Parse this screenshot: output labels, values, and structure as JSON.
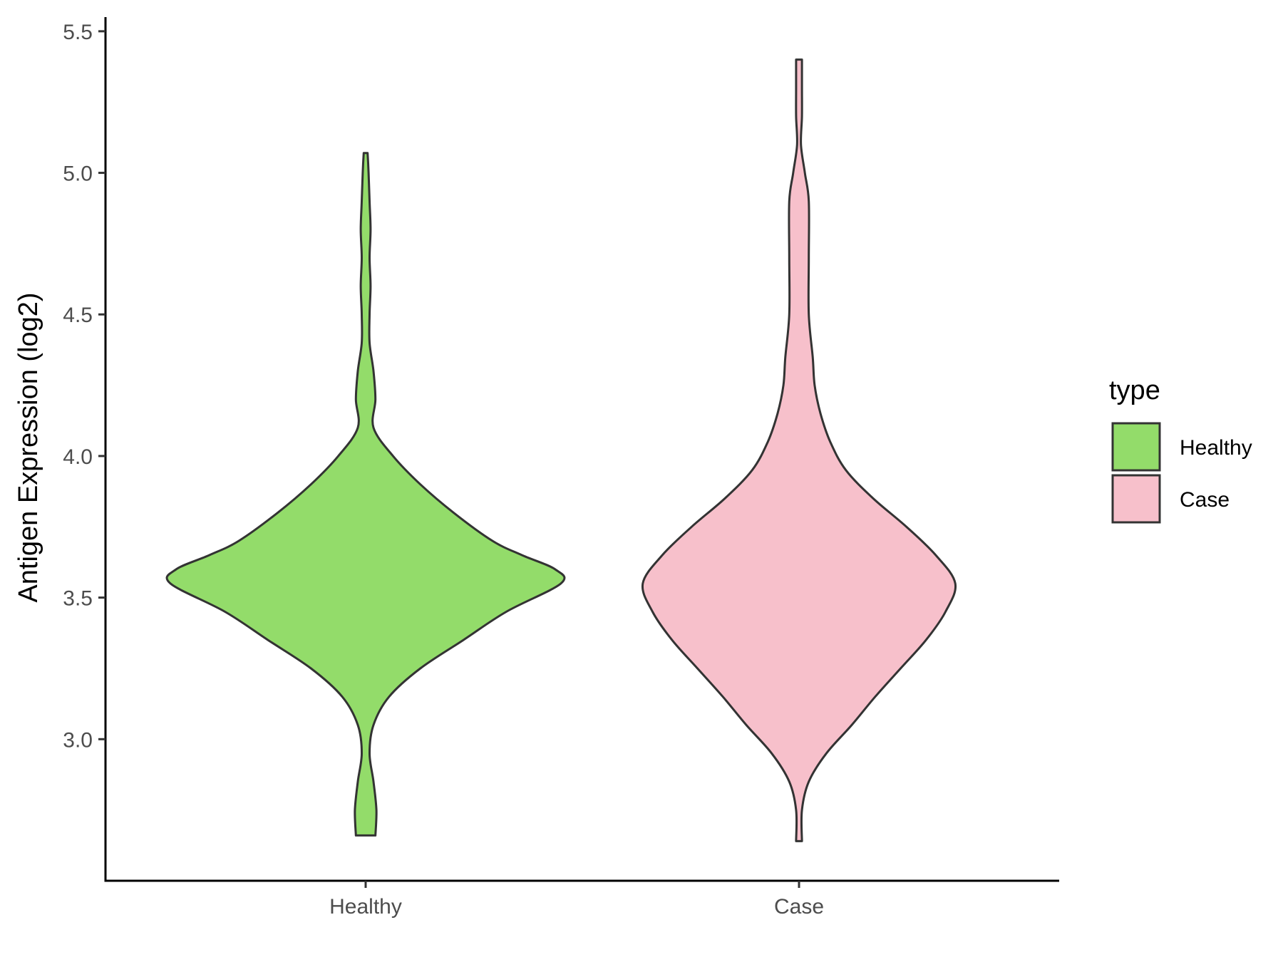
{
  "chart_data": {
    "type": "violin",
    "title": "",
    "xlabel": "",
    "ylabel": "Antigen Expression (log2)",
    "ylim": [
      2.5,
      5.55
    ],
    "yticks": [
      "3.0",
      "3.5",
      "4.0",
      "4.5",
      "5.0",
      "5.5"
    ],
    "categories": [
      "Healthy",
      "Case"
    ],
    "grid": false,
    "legend": {
      "title": "type",
      "position": "right",
      "items": [
        {
          "label": "Healthy",
          "color": "#93dc6a"
        },
        {
          "label": "Case",
          "color": "#f7c0cb"
        }
      ]
    },
    "series": [
      {
        "category": "Healthy",
        "color": "#93dc6a",
        "min": 2.66,
        "max": 5.07,
        "density": [
          [
            2.66,
            0.05
          ],
          [
            2.75,
            0.055
          ],
          [
            2.85,
            0.04
          ],
          [
            2.95,
            0.02
          ],
          [
            3.05,
            0.04
          ],
          [
            3.15,
            0.12
          ],
          [
            3.25,
            0.28
          ],
          [
            3.35,
            0.5
          ],
          [
            3.45,
            0.72
          ],
          [
            3.55,
            1.0
          ],
          [
            3.6,
            0.97
          ],
          [
            3.65,
            0.8
          ],
          [
            3.7,
            0.65
          ],
          [
            3.8,
            0.45
          ],
          [
            3.9,
            0.28
          ],
          [
            4.0,
            0.14
          ],
          [
            4.1,
            0.04
          ],
          [
            4.2,
            0.05
          ],
          [
            4.3,
            0.04
          ],
          [
            4.4,
            0.02
          ],
          [
            4.5,
            0.02
          ],
          [
            4.6,
            0.025
          ],
          [
            4.7,
            0.02
          ],
          [
            4.8,
            0.025
          ],
          [
            4.9,
            0.02
          ],
          [
            5.0,
            0.015
          ],
          [
            5.07,
            0.01
          ]
        ]
      },
      {
        "category": "Case",
        "color": "#f7c0cb",
        "min": 2.64,
        "max": 5.4,
        "density": [
          [
            2.64,
            0.015
          ],
          [
            2.75,
            0.015
          ],
          [
            2.85,
            0.05
          ],
          [
            2.95,
            0.14
          ],
          [
            3.05,
            0.27
          ],
          [
            3.15,
            0.39
          ],
          [
            3.25,
            0.52
          ],
          [
            3.35,
            0.65
          ],
          [
            3.45,
            0.75
          ],
          [
            3.55,
            0.8
          ],
          [
            3.65,
            0.7
          ],
          [
            3.75,
            0.55
          ],
          [
            3.85,
            0.38
          ],
          [
            3.95,
            0.24
          ],
          [
            4.05,
            0.16
          ],
          [
            4.15,
            0.11
          ],
          [
            4.25,
            0.08
          ],
          [
            4.35,
            0.07
          ],
          [
            4.5,
            0.05
          ],
          [
            4.7,
            0.05
          ],
          [
            4.9,
            0.05
          ],
          [
            5.0,
            0.03
          ],
          [
            5.1,
            0.01
          ],
          [
            5.2,
            0.015
          ],
          [
            5.3,
            0.015
          ],
          [
            5.4,
            0.015
          ]
        ]
      }
    ]
  }
}
